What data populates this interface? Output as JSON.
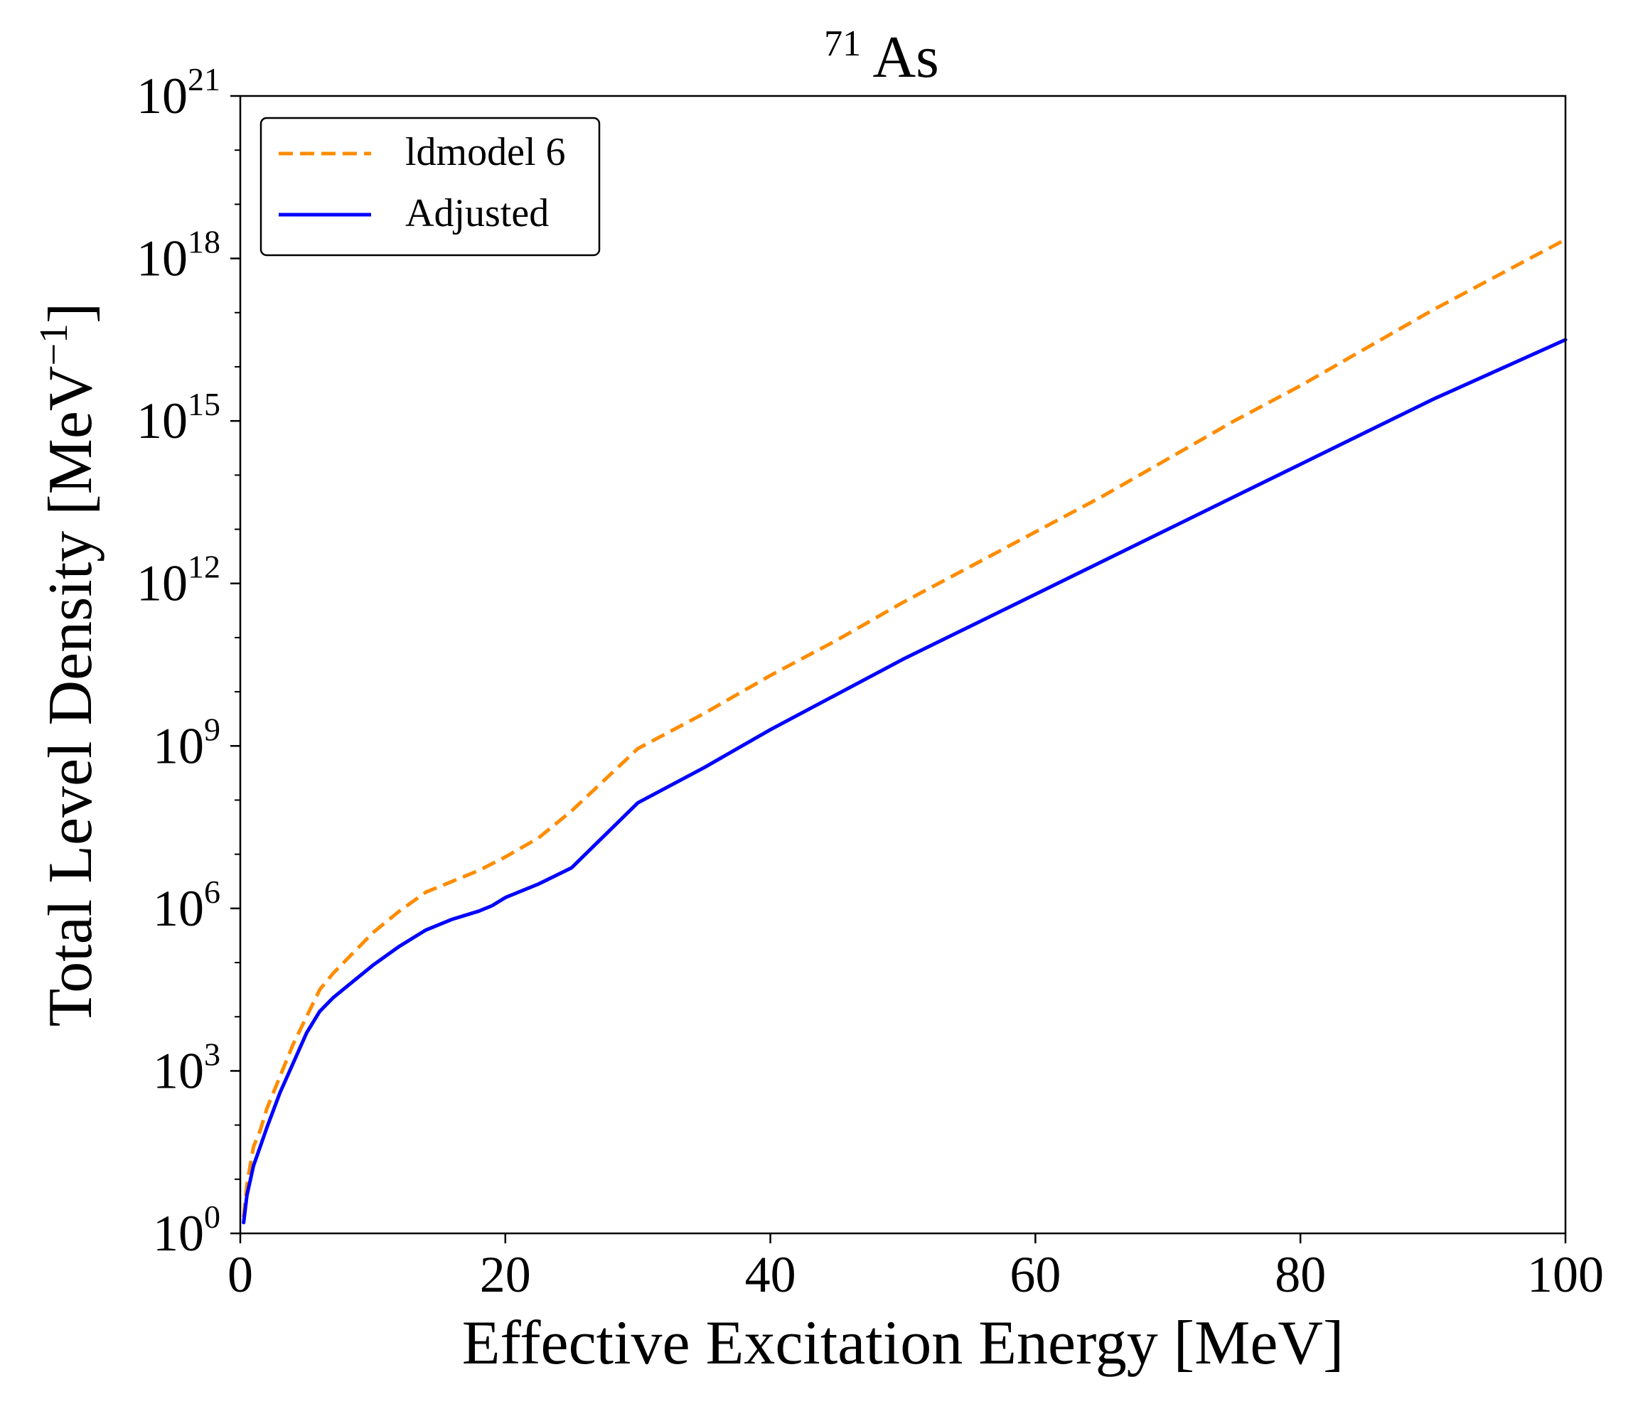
{
  "chart_data": {
    "type": "line",
    "title": {
      "superscript": "71",
      "main": "As"
    },
    "xlabel": "Effective Excitation Energy [MeV]",
    "ylabel": {
      "main": "Total Level Density [MeV",
      "superscript": "−1",
      "close": "]"
    },
    "xlim": [
      0,
      100
    ],
    "ylim_log10": [
      0,
      21
    ],
    "x_ticks": [
      0,
      20,
      40,
      60,
      80,
      100
    ],
    "x_tick_labels": [
      "0",
      "20",
      "40",
      "60",
      "80",
      "100"
    ],
    "y_ticks_log10": [
      0,
      3,
      6,
      9,
      12,
      15,
      18,
      21
    ],
    "y_tick_labels": [
      {
        "base": "10",
        "exp": "0"
      },
      {
        "base": "10",
        "exp": "3"
      },
      {
        "base": "10",
        "exp": "6"
      },
      {
        "base": "10",
        "exp": "9"
      },
      {
        "base": "10",
        "exp": "12"
      },
      {
        "base": "10",
        "exp": "15"
      },
      {
        "base": "10",
        "exp": "18"
      },
      {
        "base": "10",
        "exp": "21"
      }
    ],
    "legend_position": "top-left",
    "series": [
      {
        "name": "ldmodel 6",
        "color": "#ff8c00",
        "style": "dashed",
        "points": [
          [
            0.25,
            0.3
          ],
          [
            0.5,
            0.9
          ],
          [
            1,
            1.6
          ],
          [
            1.5,
            1.9
          ],
          [
            2,
            2.3
          ],
          [
            3,
            2.9
          ],
          [
            4,
            3.5
          ],
          [
            5,
            4.0
          ],
          [
            6,
            4.5
          ],
          [
            7,
            4.8
          ],
          [
            8,
            5.05
          ],
          [
            9,
            5.3
          ],
          [
            10,
            5.55
          ],
          [
            12,
            5.95
          ],
          [
            14,
            6.3
          ],
          [
            16,
            6.5
          ],
          [
            18,
            6.7
          ],
          [
            20,
            6.95
          ],
          [
            22.5,
            7.3
          ],
          [
            25,
            7.8
          ],
          [
            30,
            8.95
          ],
          [
            35,
            9.6
          ],
          [
            40,
            10.3
          ],
          [
            45,
            10.95
          ],
          [
            50,
            11.65
          ],
          [
            55,
            12.3
          ],
          [
            60,
            12.95
          ],
          [
            65,
            13.6
          ],
          [
            70,
            14.3
          ],
          [
            75,
            15.0
          ],
          [
            80,
            15.65
          ],
          [
            85,
            16.35
          ],
          [
            90,
            17.05
          ],
          [
            95,
            17.7
          ],
          [
            100,
            18.35
          ]
        ]
      },
      {
        "name": "Adjusted",
        "color": "#0000ff",
        "style": "solid",
        "points": [
          [
            0.25,
            0.2
          ],
          [
            0.5,
            0.7
          ],
          [
            1,
            1.25
          ],
          [
            1.5,
            1.6
          ],
          [
            2,
            1.95
          ],
          [
            3,
            2.6
          ],
          [
            4,
            3.15
          ],
          [
            5,
            3.7
          ],
          [
            6,
            4.1
          ],
          [
            7,
            4.35
          ],
          [
            8,
            4.55
          ],
          [
            9,
            4.75
          ],
          [
            10,
            4.95
          ],
          [
            12,
            5.3
          ],
          [
            14,
            5.6
          ],
          [
            16,
            5.8
          ],
          [
            18,
            5.95
          ],
          [
            19,
            6.05
          ],
          [
            20,
            6.2
          ],
          [
            22.5,
            6.45
          ],
          [
            25,
            6.75
          ],
          [
            30,
            7.95
          ],
          [
            35,
            8.6
          ],
          [
            40,
            9.3
          ],
          [
            45,
            9.95
          ],
          [
            50,
            10.6
          ],
          [
            55,
            11.2
          ],
          [
            60,
            11.8
          ],
          [
            65,
            12.4
          ],
          [
            70,
            13.0
          ],
          [
            75,
            13.6
          ],
          [
            80,
            14.2
          ],
          [
            85,
            14.8
          ],
          [
            90,
            15.4
          ],
          [
            95,
            15.95
          ],
          [
            100,
            16.5
          ]
        ]
      }
    ]
  }
}
